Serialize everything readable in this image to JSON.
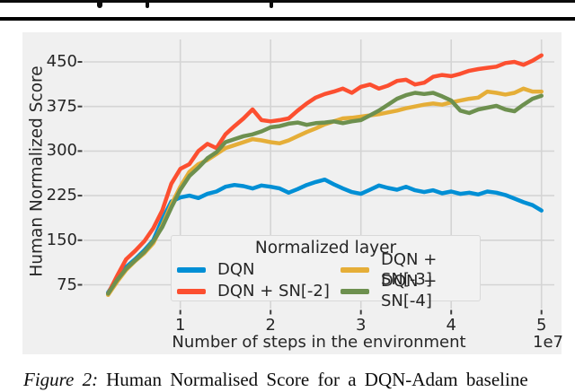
{
  "figure": {
    "caption_prefix": "Figure 2:",
    "caption_text": "Human Normalised Score for a DQN-Adam baseline"
  },
  "chart_data": {
    "type": "line",
    "title": "",
    "xlabel": "Number of steps in the environment",
    "ylabel": "Human Normalized Score",
    "x_offset_label": "1e7",
    "x_scale": 10000000,
    "xticks": [
      1,
      2,
      3,
      4,
      5
    ],
    "yticks": [
      75,
      150,
      225,
      300,
      375,
      450
    ],
    "xlim": [
      -0.07,
      5.12
    ],
    "ylim": [
      35,
      488
    ],
    "grid": true,
    "background_color": "#f0f0f0",
    "grid_color": "#d4d4d4",
    "tick_color": "#3c3c3c",
    "legend": {
      "title": "Normalized layer",
      "columns": 2,
      "position": "lower right inside"
    },
    "x": [
      0.2,
      0.3,
      0.4,
      0.5,
      0.6,
      0.7,
      0.8,
      0.9,
      1.0,
      1.1,
      1.2,
      1.3,
      1.4,
      1.5,
      1.6,
      1.7,
      1.8,
      1.9,
      2.0,
      2.1,
      2.2,
      2.3,
      2.4,
      2.5,
      2.6,
      2.7,
      2.8,
      2.9,
      3.0,
      3.1,
      3.2,
      3.3,
      3.4,
      3.5,
      3.6,
      3.7,
      3.8,
      3.9,
      4.0,
      4.1,
      4.2,
      4.3,
      4.4,
      4.5,
      4.6,
      4.7,
      4.8,
      4.9,
      5.0
    ],
    "series": [
      {
        "name": "DQN",
        "color": "#008fd5",
        "values": [
          62,
          85,
          105,
          118,
          133,
          150,
          185,
          215,
          222,
          225,
          221,
          228,
          232,
          240,
          243,
          241,
          237,
          242,
          240,
          237,
          230,
          236,
          243,
          248,
          252,
          244,
          237,
          231,
          228,
          235,
          242,
          238,
          235,
          240,
          234,
          231,
          234,
          229,
          232,
          228,
          230,
          227,
          232,
          230,
          226,
          220,
          214,
          209,
          200
        ]
      },
      {
        "name": "DQN + SN[-2]",
        "color": "#fc4f30",
        "values": [
          60,
          90,
          118,
          132,
          148,
          170,
          200,
          245,
          270,
          278,
          300,
          312,
          305,
          328,
          342,
          355,
          370,
          352,
          350,
          352,
          355,
          368,
          380,
          390,
          396,
          400,
          405,
          398,
          408,
          412,
          405,
          410,
          418,
          420,
          412,
          415,
          425,
          428,
          426,
          430,
          435,
          438,
          440,
          442,
          448,
          450,
          445,
          452,
          461
        ]
      },
      {
        "name": "DQN + SN[-3]",
        "color": "#e5ae38",
        "values": [
          58,
          80,
          100,
          115,
          128,
          145,
          175,
          210,
          240,
          265,
          278,
          285,
          295,
          305,
          310,
          315,
          320,
          318,
          315,
          313,
          318,
          325,
          332,
          338,
          345,
          350,
          355,
          356,
          358,
          360,
          362,
          365,
          368,
          372,
          375,
          378,
          380,
          378,
          382,
          385,
          388,
          390,
          400,
          398,
          395,
          398,
          405,
          400,
          400
        ]
      },
      {
        "name": "DQN + SN[-4]",
        "color": "#6d904f",
        "values": [
          60,
          83,
          102,
          116,
          130,
          148,
          172,
          205,
          235,
          258,
          272,
          288,
          298,
          315,
          320,
          325,
          328,
          333,
          340,
          342,
          346,
          348,
          344,
          347,
          348,
          350,
          347,
          350,
          352,
          360,
          368,
          378,
          388,
          394,
          398,
          396,
          398,
          392,
          385,
          368,
          364,
          370,
          373,
          376,
          370,
          367,
          378,
          388,
          393
        ]
      }
    ]
  }
}
